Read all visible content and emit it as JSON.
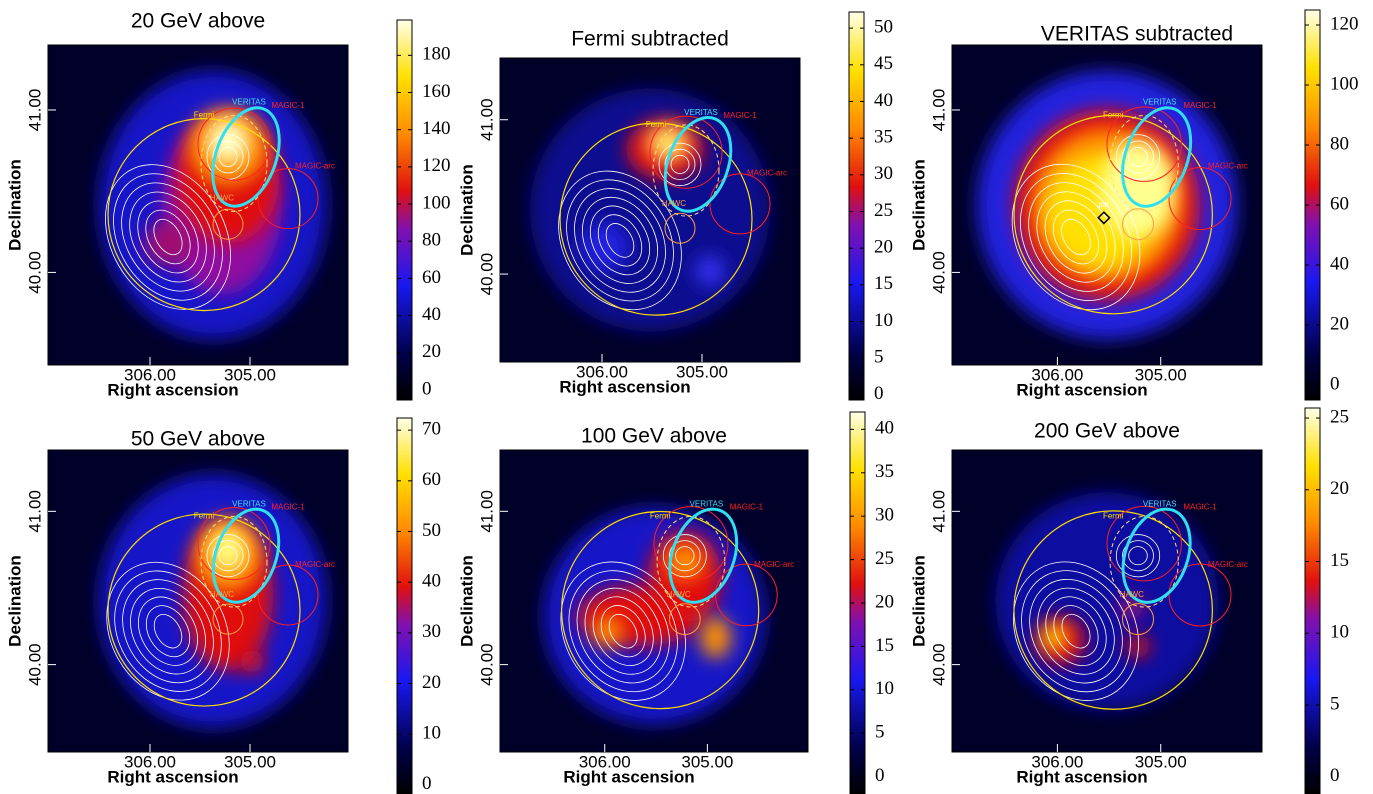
{
  "chart_data": [
    {
      "type": "heatmap",
      "title": "20 GeV above",
      "xlabel": "Right ascension",
      "ylabel": "Declination",
      "xlim": [
        307.02,
        304.02
      ],
      "ylim": [
        39.43,
        41.4
      ],
      "xticks": [
        {
          "value": 306,
          "label": "306.00"
        },
        {
          "value": 305,
          "label": "305.00"
        }
      ],
      "yticks": [
        {
          "value": 40,
          "label": "40.00"
        },
        {
          "value": 41,
          "label": "41.00"
        }
      ],
      "colorbar": {
        "lim": [
          -5.4,
          199
        ],
        "ticks": [
          0,
          20,
          40,
          60,
          80,
          100,
          120,
          140,
          160,
          180
        ]
      },
      "annotations": [
        "Fermi",
        "VERITAS",
        "MAGIC-1",
        "MAGIC-arc",
        "HAWC"
      ]
    },
    {
      "type": "heatmap",
      "title": "Fermi subtracted",
      "xlabel": "Right ascension",
      "ylabel": "Declination",
      "xlim": [
        307.02,
        304.02
      ],
      "ylim": [
        39.43,
        41.4
      ],
      "xticks": [
        {
          "value": 306,
          "label": "306.00"
        },
        {
          "value": 305,
          "label": "305.00"
        }
      ],
      "yticks": [
        {
          "value": 40,
          "label": "40.00"
        },
        {
          "value": 41,
          "label": "41.00"
        }
      ],
      "colorbar": {
        "lim": [
          -0.7,
          52.2
        ],
        "ticks": [
          0,
          5,
          10,
          15,
          20,
          25,
          30,
          35,
          40,
          45,
          50
        ]
      },
      "annotations": [
        "Fermi",
        "VERITAS",
        "MAGIC-1",
        "MAGIC-arc",
        "HAWC"
      ]
    },
    {
      "type": "heatmap",
      "title": "VERITAS subtracted",
      "xlabel": "Right ascension",
      "ylabel": "Declination",
      "xlim": [
        307.02,
        304.02
      ],
      "ylim": [
        39.43,
        41.4
      ],
      "xticks": [
        {
          "value": 306,
          "label": "306.00"
        },
        {
          "value": 305,
          "label": "305.00"
        }
      ],
      "yticks": [
        {
          "value": 40,
          "label": "40.00"
        },
        {
          "value": 41,
          "label": "41.00"
        }
      ],
      "colorbar": {
        "lim": [
          -5,
          125
        ],
        "ticks": [
          0,
          20,
          40,
          60,
          80,
          100,
          120
        ]
      },
      "annotations": [
        "Fermi",
        "VERITAS",
        "MAGIC-1",
        "MAGIC-arc",
        "psr"
      ]
    },
    {
      "type": "heatmap",
      "title": "50 GeV above",
      "xlabel": "Right ascension",
      "ylabel": "Declination",
      "xlim": [
        307.02,
        304.02
      ],
      "ylim": [
        39.43,
        41.4
      ],
      "xticks": [
        {
          "value": 306,
          "label": "306.00"
        },
        {
          "value": 305,
          "label": "305.00"
        }
      ],
      "yticks": [
        {
          "value": 40,
          "label": "40.00"
        },
        {
          "value": 41,
          "label": "41.00"
        }
      ],
      "colorbar": {
        "lim": [
          -1.8,
          72.4
        ],
        "ticks": [
          0,
          10,
          20,
          30,
          40,
          50,
          60,
          70
        ]
      },
      "annotations": [
        "Fermi",
        "VERITAS",
        "MAGIC-1",
        "MAGIC-arc",
        "HAWC"
      ]
    },
    {
      "type": "heatmap",
      "title": "100 GeV above",
      "xlabel": "Right ascension",
      "ylabel": "Declination",
      "xlim": [
        307.02,
        304.02
      ],
      "ylim": [
        39.43,
        41.4
      ],
      "xticks": [
        {
          "value": 306,
          "label": "306.00"
        },
        {
          "value": 305,
          "label": "305.00"
        }
      ],
      "yticks": [
        {
          "value": 40,
          "label": "40.00"
        },
        {
          "value": 41,
          "label": "41.00"
        }
      ],
      "colorbar": {
        "lim": [
          -2,
          42
        ],
        "ticks": [
          0,
          5,
          10,
          15,
          20,
          25,
          30,
          35,
          40
        ]
      },
      "annotations": [
        "Fermi",
        "VERITAS",
        "MAGIC-1",
        "MAGIC-arc",
        "HAWC"
      ]
    },
    {
      "type": "heatmap",
      "title": "200 GeV above",
      "xlabel": "Right ascension",
      "ylabel": "Declination",
      "xlim": [
        307.02,
        304.02
      ],
      "ylim": [
        39.43,
        41.4
      ],
      "xticks": [
        {
          "value": 306,
          "label": "306.00"
        },
        {
          "value": 305,
          "label": "305.00"
        }
      ],
      "yticks": [
        {
          "value": 40,
          "label": "40.00"
        },
        {
          "value": 41,
          "label": "41.00"
        }
      ],
      "colorbar": {
        "lim": [
          -1.2,
          25.7
        ],
        "ticks": [
          0,
          5,
          10,
          15,
          20,
          25
        ]
      },
      "annotations": [
        "Fermi",
        "VERITAS",
        "MAGIC-1",
        "MAGIC-arc",
        "HAWC"
      ]
    }
  ]
}
